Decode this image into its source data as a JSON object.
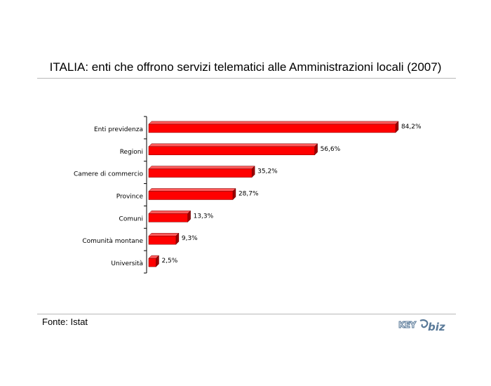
{
  "header": {
    "title": "ITALIA: enti che offrono servizi telematici alle Amministrazioni locali (2007)"
  },
  "footer": {
    "source": "Fonte: Istat",
    "logo_text": "KEY4biz"
  },
  "chart_data": {
    "type": "bar",
    "orientation": "horizontal",
    "categories": [
      "Enti previdenza",
      "Regioni",
      "Camere di commercio",
      "Province",
      "Comuni",
      "Comunità montane",
      "Università"
    ],
    "values": [
      84.2,
      56.6,
      35.2,
      28.7,
      13.3,
      9.3,
      2.5
    ],
    "value_labels": [
      "84,2%",
      "56,6%",
      "35,2%",
      "28,7%",
      "13,3%",
      "9,3%",
      "2,5%"
    ],
    "unit": "%",
    "xlim": [
      0,
      100
    ],
    "grid": false,
    "legend": "none",
    "colors": {
      "bar": "#ff0000",
      "bar_top": "#ff5a5a",
      "bar_side": "#990000",
      "axis": "#000000"
    }
  }
}
